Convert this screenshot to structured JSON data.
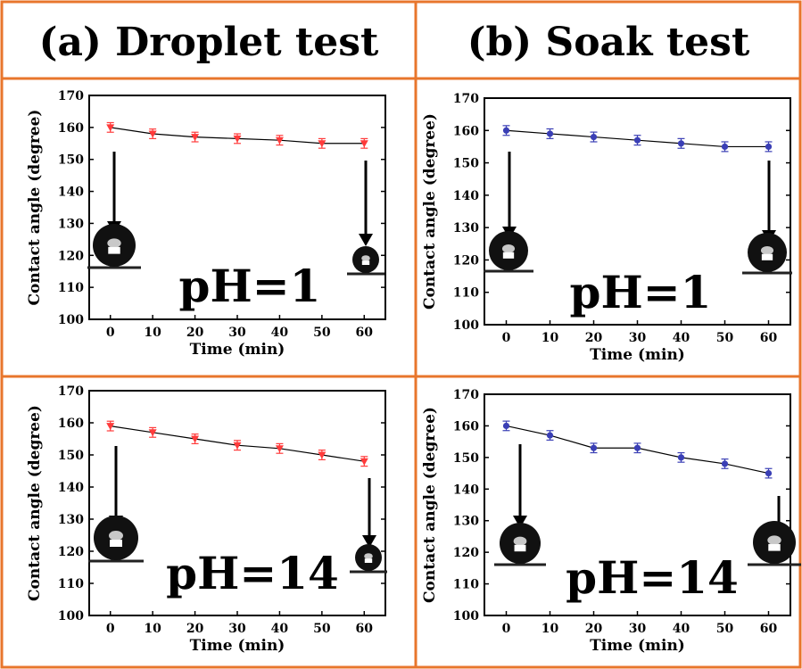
{
  "headers": {
    "a": "(a) Droplet test",
    "b": "(b) Soak test"
  },
  "colors": {
    "frame": "#e8762c",
    "droplet_series": "#ff3b3b",
    "soak_series": "#3a3fb5",
    "line": "#000000"
  },
  "icons": [
    "down-arrow-icon",
    "water-droplet-icon"
  ],
  "chart_data": [
    {
      "type": "line",
      "panel": "a",
      "annotation": "pH=1",
      "xlabel": "Time (min)",
      "ylabel": "Contact angle (degree)",
      "xlim": [
        -5,
        65
      ],
      "ylim": [
        100,
        170
      ],
      "xticks": [
        0,
        10,
        20,
        30,
        40,
        50,
        60
      ],
      "yticks": [
        100,
        110,
        120,
        130,
        140,
        150,
        160,
        170
      ],
      "marker": "triangle-down",
      "series": [
        {
          "x": [
            0,
            10,
            20,
            30,
            40,
            50,
            60
          ],
          "y": [
            160,
            158,
            157,
            156.5,
            156,
            155,
            155
          ],
          "yerr": [
            1.5,
            1.5,
            1.5,
            1.5,
            1.5,
            1.5,
            1.5
          ]
        }
      ]
    },
    {
      "type": "line",
      "panel": "b",
      "annotation": "pH=1",
      "xlabel": "Time (min)",
      "ylabel": "Contact angle (degree)",
      "xlim": [
        -5,
        65
      ],
      "ylim": [
        100,
        170
      ],
      "xticks": [
        0,
        10,
        20,
        30,
        40,
        50,
        60
      ],
      "yticks": [
        100,
        110,
        120,
        130,
        140,
        150,
        160,
        170
      ],
      "marker": "circle",
      "series": [
        {
          "x": [
            0,
            10,
            20,
            30,
            40,
            50,
            60
          ],
          "y": [
            160,
            159,
            158,
            157,
            156,
            155,
            155
          ],
          "yerr": [
            1.5,
            1.5,
            1.5,
            1.5,
            1.5,
            1.5,
            1.5
          ]
        }
      ]
    },
    {
      "type": "line",
      "panel": "a",
      "annotation": "pH=14",
      "xlabel": "Time (min)",
      "ylabel": "Contact angle (degree)",
      "xlim": [
        -5,
        65
      ],
      "ylim": [
        100,
        170
      ],
      "xticks": [
        0,
        10,
        20,
        30,
        40,
        50,
        60
      ],
      "yticks": [
        100,
        110,
        120,
        130,
        140,
        150,
        160,
        170
      ],
      "marker": "triangle-down",
      "series": [
        {
          "x": [
            0,
            10,
            20,
            30,
            40,
            50,
            60
          ],
          "y": [
            159,
            157,
            155,
            153,
            152,
            150,
            148
          ],
          "yerr": [
            1.5,
            1.5,
            1.5,
            1.5,
            1.5,
            1.5,
            1.5
          ]
        }
      ]
    },
    {
      "type": "line",
      "panel": "b",
      "annotation": "pH=14",
      "xlabel": "Time (min)",
      "ylabel": "Contact angle (degree)",
      "xlim": [
        -5,
        65
      ],
      "ylim": [
        100,
        170
      ],
      "xticks": [
        0,
        10,
        20,
        30,
        40,
        50,
        60
      ],
      "yticks": [
        100,
        110,
        120,
        130,
        140,
        150,
        160,
        170
      ],
      "marker": "circle",
      "series": [
        {
          "x": [
            0,
            10,
            20,
            30,
            40,
            50,
            60
          ],
          "y": [
            160,
            157,
            153,
            153,
            150,
            148,
            145
          ],
          "yerr": [
            1.5,
            1.5,
            1.5,
            1.5,
            1.5,
            1.5,
            1.5
          ]
        }
      ]
    }
  ]
}
